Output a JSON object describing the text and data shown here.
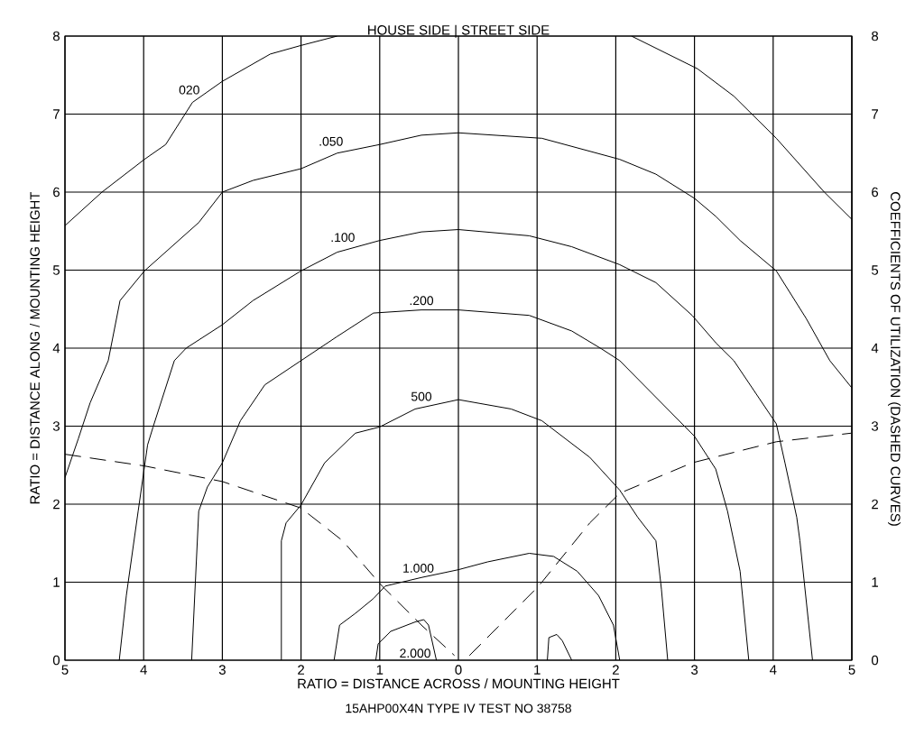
{
  "chart_data": {
    "type": "line",
    "title": "HOUSE SIDE | STREET SIDE",
    "xlabel": "RATIO = DISTANCE ACROSS / MOUNTING HEIGHT",
    "ylabel": "RATIO = DISTANCE ALONG / MOUNTING HEIGHT",
    "y2label": "COEFFICIENTS OF UTILIZATION (DASHED CURVES)",
    "xlim": [
      -5,
      5
    ],
    "xticks": [
      {
        "value": -5,
        "label": "5"
      },
      {
        "value": -4,
        "label": "4"
      },
      {
        "value": -3,
        "label": "3"
      },
      {
        "value": -2,
        "label": "2"
      },
      {
        "value": -1,
        "label": "1"
      },
      0,
      1,
      2,
      3,
      4,
      5
    ],
    "ylim": [
      0,
      8
    ],
    "yticks": [
      0,
      1,
      2,
      3,
      4,
      5,
      6,
      7,
      8
    ],
    "y2lim": [
      0,
      8
    ],
    "y2ticks": [
      0,
      1,
      2,
      3,
      4,
      5,
      6,
      7,
      8
    ],
    "grid": true,
    "annotations": [
      {
        "text": "020",
        "x": -3.42,
        "y": 7.31
      },
      {
        "text": ".050",
        "x": -1.62,
        "y": 6.65
      },
      {
        "text": ".100",
        "x": -1.47,
        "y": 5.42
      },
      {
        "text": ".200",
        "x": -0.47,
        "y": 4.61
      },
      {
        "text": "500",
        "x": -0.47,
        "y": 3.38
      },
      {
        "text": "1.000",
        "x": -0.51,
        "y": 1.18
      },
      {
        "text": "2.000",
        "x": -0.55,
        "y": 0.09
      },
      "15AHP00X4N TYPE IV TEST NO 38758"
    ],
    "series": [
      {
        "color": "#000000",
        "line_style": "solid",
        "x": [
          -5,
          -4.53,
          -3.99,
          -3.72,
          -3.38,
          -3.0,
          -2.39,
          -2.0,
          -1.54,
          0,
          2.2,
          3.04,
          3.5,
          4.04,
          4.65,
          5
        ],
        "values": [
          5.57,
          6.0,
          6.42,
          6.61,
          7.15,
          7.42,
          7.77,
          7.88,
          8,
          null,
          8,
          7.58,
          7.23,
          6.69,
          6.0,
          5.65
        ]
      },
      {
        "color": "#000000",
        "line_style": "solid",
        "x": [
          -5,
          -4.83,
          -4.68,
          -4.45,
          -4.3,
          -3.99,
          -3.3,
          -3.0,
          -2.61,
          -2.0,
          -1.54,
          -1.0,
          -0.47,
          0,
          1.06,
          2.05,
          2.51,
          3.0,
          3.27,
          3.58,
          4.04,
          4.42,
          4.72,
          5
        ],
        "values": [
          2.34,
          2.84,
          3.3,
          3.84,
          4.61,
          4.99,
          5.61,
          6.0,
          6.15,
          6.3,
          6.5,
          6.61,
          6.73,
          6.76,
          6.69,
          6.42,
          6.23,
          5.92,
          5.69,
          5.38,
          4.99,
          4.38,
          3.84,
          3.49
        ]
      },
      {
        "color": "#000000",
        "line_style": "solid",
        "x": [
          -4.31,
          -4.22,
          -4.07,
          -3.95,
          -3.88,
          -3.61,
          -3.46,
          -3.0,
          -2.61,
          -2.0,
          -1.54,
          -1.0,
          -0.47,
          0,
          0.9,
          1.44,
          2.05,
          2.51,
          2.97,
          3.27,
          3.5,
          4.04,
          4.15,
          4.3,
          4.34,
          4.5
        ],
        "values": [
          0,
          0.83,
          1.91,
          2.76,
          2.99,
          3.84,
          4.0,
          4.3,
          4.61,
          4.99,
          5.23,
          5.38,
          5.49,
          5.52,
          5.44,
          5.3,
          5.07,
          4.84,
          4.42,
          4.07,
          3.84,
          3.03,
          2.53,
          1.83,
          1.53,
          0
        ]
      },
      {
        "color": "#000000",
        "line_style": "solid",
        "x": [
          -3.39,
          -3.3,
          -3.19,
          -3.0,
          -2.77,
          -2.46,
          -2.0,
          -1.54,
          -1.08,
          -0.47,
          0,
          0.9,
          1.44,
          1.82,
          2.05,
          3.0,
          3.27,
          3.42,
          3.58,
          3.69
        ],
        "values": [
          0,
          1.91,
          2.22,
          2.53,
          3.07,
          3.53,
          3.84,
          4.15,
          4.45,
          4.49,
          4.49,
          4.42,
          4.22,
          3.99,
          3.84,
          2.87,
          2.45,
          1.91,
          1.14,
          0
        ]
      },
      {
        "color": "#000000",
        "line_style": "solid",
        "x": [
          -2.25,
          -2.25,
          -2.19,
          -2.0,
          -1.7,
          -1.31,
          -1.0,
          -0.55,
          0,
          0.67,
          1.06,
          1.67,
          2.05,
          2.28,
          2.51,
          2.58,
          2.66
        ],
        "values": [
          0,
          1.53,
          1.76,
          1.99,
          2.53,
          2.91,
          2.99,
          3.22,
          3.34,
          3.22,
          3.07,
          2.6,
          2.18,
          1.83,
          1.53,
          0.91,
          0
        ]
      },
      {
        "color": "#000000",
        "line_style": "solid",
        "x": [
          -1.58,
          -1.51,
          -1.31,
          -1.08,
          -0.93,
          -0.47,
          0,
          0.37,
          0.9,
          1.21,
          1.51,
          1.78,
          1.97,
          2.05
        ],
        "values": [
          0,
          0.45,
          0.6,
          0.79,
          0.95,
          1.06,
          1.16,
          1.26,
          1.37,
          1.33,
          1.14,
          0.83,
          0.45,
          0
        ]
      },
      {
        "color": "#000000",
        "line_style": "solid",
        "x": [
          -1.05,
          -1.02,
          -0.86,
          -0.55,
          -0.44,
          -0.38,
          -0.28,
          0,
          1.13,
          1.15,
          1.25,
          1.32,
          1.44
        ],
        "values": [
          0,
          0.21,
          0.37,
          0.49,
          0.52,
          0.45,
          0,
          null,
          0,
          0.29,
          0.33,
          0.25,
          0
        ]
      },
      {
        "color": "#000000",
        "line_style": "dashed",
        "axis": "y2",
        "x": [
          -5,
          -3.99,
          -3.0,
          -2.0,
          -1.47,
          -0.97,
          -0.47,
          -0.05
        ],
        "values": [
          2.64,
          2.49,
          2.29,
          1.95,
          1.53,
          0.95,
          0.45,
          0.06
        ]
      },
      {
        "color": "#000000",
        "line_style": "dashed",
        "axis": "y2",
        "x": [
          0.14,
          1.02,
          1.67,
          2.05,
          2.97,
          4.04,
          4.99
        ],
        "values": [
          0.06,
          0.95,
          1.76,
          2.14,
          2.53,
          2.8,
          2.91
        ]
      }
    ]
  }
}
